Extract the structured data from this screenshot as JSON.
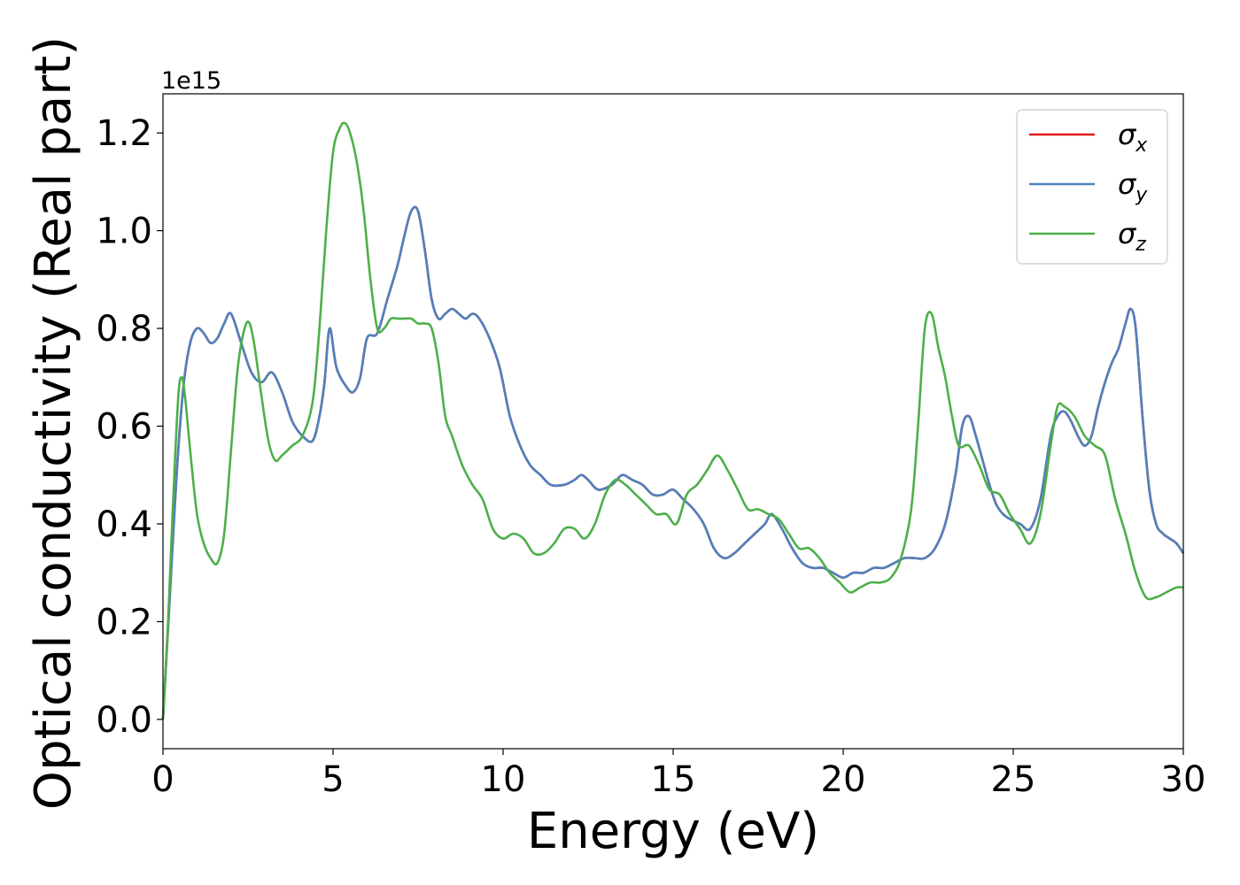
{
  "chart_data": {
    "type": "line",
    "xlabel": "Energy (eV)",
    "ylabel": "Optical conductivity (Real part)",
    "y_offset_label": "1e15",
    "xlim": [
      0,
      30
    ],
    "ylim": [
      -0.06,
      1.28
    ],
    "x_ticks": [
      0,
      5,
      10,
      15,
      20,
      25,
      30
    ],
    "y_ticks": [
      0.0,
      0.2,
      0.4,
      0.6,
      0.8,
      1.0,
      1.2
    ],
    "x_tick_labels": [
      "0",
      "5",
      "10",
      "15",
      "20",
      "25",
      "30"
    ],
    "y_tick_labels": [
      "0.0",
      "0.2",
      "0.4",
      "0.6",
      "0.8",
      "1.0",
      "1.2"
    ],
    "legend_position": "top-right",
    "grid": false,
    "series": [
      {
        "name": "σx",
        "symbol": "σ",
        "subscript": "x",
        "color": "#e41a1c",
        "x": [
          0,
          0.2,
          0.4,
          0.6,
          0.8,
          1.0,
          1.2,
          1.4,
          1.6,
          1.8,
          2.0,
          2.3,
          2.6,
          2.9,
          3.2,
          3.5,
          3.8,
          4.1,
          4.4,
          4.6,
          4.75,
          4.9,
          5.1,
          5.4,
          5.6,
          5.8,
          6.0,
          6.3,
          6.6,
          6.9,
          7.1,
          7.3,
          7.5,
          7.7,
          7.9,
          8.1,
          8.3,
          8.5,
          8.7,
          8.9,
          9.1,
          9.3,
          9.6,
          9.9,
          10.2,
          10.5,
          10.8,
          11.1,
          11.4,
          11.8,
          12.1,
          12.3,
          12.5,
          12.8,
          13.2,
          13.5,
          13.8,
          14.1,
          14.4,
          14.7,
          15.0,
          15.3,
          15.6,
          15.9,
          16.2,
          16.5,
          16.8,
          17.1,
          17.4,
          17.7,
          17.9,
          18.2,
          18.5,
          18.8,
          19.1,
          19.4,
          19.7,
          20.0,
          20.3,
          20.6,
          20.9,
          21.2,
          21.5,
          21.8,
          22.1,
          22.4,
          22.7,
          23.0,
          23.3,
          23.5,
          23.7,
          23.9,
          24.1,
          24.3,
          24.5,
          24.7,
          24.9,
          25.2,
          25.5,
          25.8,
          26.1,
          26.3,
          26.5,
          26.7,
          26.9,
          27.1,
          27.3,
          27.5,
          27.7,
          27.9,
          28.1,
          28.3,
          28.45,
          28.6,
          28.8,
          29.0,
          29.2,
          29.4,
          29.6,
          29.8,
          30.0
        ],
        "values": [
          0.0,
          0.25,
          0.5,
          0.68,
          0.77,
          0.8,
          0.79,
          0.77,
          0.78,
          0.81,
          0.83,
          0.77,
          0.71,
          0.69,
          0.71,
          0.67,
          0.61,
          0.58,
          0.57,
          0.62,
          0.69,
          0.8,
          0.72,
          0.68,
          0.67,
          0.7,
          0.78,
          0.79,
          0.86,
          0.93,
          0.99,
          1.04,
          1.04,
          0.96,
          0.86,
          0.82,
          0.83,
          0.84,
          0.83,
          0.82,
          0.83,
          0.82,
          0.78,
          0.72,
          0.62,
          0.56,
          0.52,
          0.5,
          0.48,
          0.48,
          0.49,
          0.5,
          0.49,
          0.47,
          0.48,
          0.5,
          0.49,
          0.48,
          0.46,
          0.46,
          0.47,
          0.45,
          0.43,
          0.4,
          0.35,
          0.33,
          0.34,
          0.36,
          0.38,
          0.4,
          0.42,
          0.39,
          0.35,
          0.32,
          0.31,
          0.31,
          0.3,
          0.29,
          0.3,
          0.3,
          0.31,
          0.31,
          0.32,
          0.33,
          0.33,
          0.33,
          0.35,
          0.4,
          0.5,
          0.6,
          0.62,
          0.58,
          0.53,
          0.48,
          0.44,
          0.42,
          0.41,
          0.4,
          0.39,
          0.45,
          0.58,
          0.62,
          0.63,
          0.61,
          0.58,
          0.56,
          0.58,
          0.64,
          0.69,
          0.73,
          0.76,
          0.81,
          0.84,
          0.8,
          0.62,
          0.47,
          0.4,
          0.38,
          0.37,
          0.36,
          0.34
        ]
      },
      {
        "name": "σy",
        "symbol": "σ",
        "subscript": "y",
        "color": "#4f81bd",
        "x": [
          0,
          0.2,
          0.4,
          0.6,
          0.8,
          1.0,
          1.2,
          1.4,
          1.6,
          1.8,
          2.0,
          2.3,
          2.6,
          2.9,
          3.2,
          3.5,
          3.8,
          4.1,
          4.4,
          4.6,
          4.75,
          4.9,
          5.1,
          5.4,
          5.6,
          5.8,
          6.0,
          6.3,
          6.6,
          6.9,
          7.1,
          7.3,
          7.5,
          7.7,
          7.9,
          8.1,
          8.3,
          8.5,
          8.7,
          8.9,
          9.1,
          9.3,
          9.6,
          9.9,
          10.2,
          10.5,
          10.8,
          11.1,
          11.4,
          11.8,
          12.1,
          12.3,
          12.5,
          12.8,
          13.2,
          13.5,
          13.8,
          14.1,
          14.4,
          14.7,
          15.0,
          15.3,
          15.6,
          15.9,
          16.2,
          16.5,
          16.8,
          17.1,
          17.4,
          17.7,
          17.9,
          18.2,
          18.5,
          18.8,
          19.1,
          19.4,
          19.7,
          20.0,
          20.3,
          20.6,
          20.9,
          21.2,
          21.5,
          21.8,
          22.1,
          22.4,
          22.7,
          23.0,
          23.3,
          23.5,
          23.7,
          23.9,
          24.1,
          24.3,
          24.5,
          24.7,
          24.9,
          25.2,
          25.5,
          25.8,
          26.1,
          26.3,
          26.5,
          26.7,
          26.9,
          27.1,
          27.3,
          27.5,
          27.7,
          27.9,
          28.1,
          28.3,
          28.45,
          28.6,
          28.8,
          29.0,
          29.2,
          29.4,
          29.6,
          29.8,
          30.0
        ],
        "values": [
          0.0,
          0.25,
          0.5,
          0.68,
          0.77,
          0.8,
          0.79,
          0.77,
          0.78,
          0.81,
          0.83,
          0.77,
          0.71,
          0.69,
          0.71,
          0.67,
          0.61,
          0.58,
          0.57,
          0.62,
          0.69,
          0.8,
          0.72,
          0.68,
          0.67,
          0.7,
          0.78,
          0.79,
          0.86,
          0.93,
          0.99,
          1.04,
          1.04,
          0.96,
          0.86,
          0.82,
          0.83,
          0.84,
          0.83,
          0.82,
          0.83,
          0.82,
          0.78,
          0.72,
          0.62,
          0.56,
          0.52,
          0.5,
          0.48,
          0.48,
          0.49,
          0.5,
          0.49,
          0.47,
          0.48,
          0.5,
          0.49,
          0.48,
          0.46,
          0.46,
          0.47,
          0.45,
          0.43,
          0.4,
          0.35,
          0.33,
          0.34,
          0.36,
          0.38,
          0.4,
          0.42,
          0.39,
          0.35,
          0.32,
          0.31,
          0.31,
          0.3,
          0.29,
          0.3,
          0.3,
          0.31,
          0.31,
          0.32,
          0.33,
          0.33,
          0.33,
          0.35,
          0.4,
          0.5,
          0.6,
          0.62,
          0.58,
          0.53,
          0.48,
          0.44,
          0.42,
          0.41,
          0.4,
          0.39,
          0.45,
          0.58,
          0.62,
          0.63,
          0.61,
          0.58,
          0.56,
          0.58,
          0.64,
          0.69,
          0.73,
          0.76,
          0.81,
          0.84,
          0.8,
          0.62,
          0.47,
          0.4,
          0.38,
          0.37,
          0.36,
          0.34
        ]
      },
      {
        "name": "σz",
        "symbol": "σ",
        "subscript": "z",
        "color": "#4daf4a",
        "x": [
          0,
          0.15,
          0.3,
          0.45,
          0.55,
          0.65,
          0.8,
          1.0,
          1.2,
          1.4,
          1.6,
          1.8,
          2.0,
          2.2,
          2.4,
          2.55,
          2.7,
          2.9,
          3.1,
          3.3,
          3.5,
          3.8,
          4.1,
          4.4,
          4.6,
          4.8,
          5.0,
          5.2,
          5.35,
          5.5,
          5.7,
          5.9,
          6.1,
          6.3,
          6.5,
          6.7,
          6.9,
          7.1,
          7.3,
          7.5,
          7.7,
          7.9,
          8.1,
          8.3,
          8.5,
          8.8,
          9.1,
          9.4,
          9.7,
          10.0,
          10.3,
          10.6,
          10.9,
          11.2,
          11.5,
          11.8,
          12.1,
          12.4,
          12.7,
          13.0,
          13.3,
          13.6,
          13.9,
          14.2,
          14.5,
          14.8,
          15.1,
          15.4,
          15.7,
          16.0,
          16.3,
          16.6,
          16.9,
          17.2,
          17.5,
          17.8,
          18.1,
          18.4,
          18.7,
          19.0,
          19.3,
          19.6,
          19.9,
          20.2,
          20.5,
          20.8,
          21.1,
          21.4,
          21.7,
          22.0,
          22.2,
          22.4,
          22.6,
          22.8,
          23.0,
          23.2,
          23.4,
          23.7,
          24.0,
          24.3,
          24.6,
          24.9,
          25.2,
          25.5,
          25.8,
          26.1,
          26.3,
          26.5,
          26.8,
          27.1,
          27.4,
          27.7,
          28.0,
          28.3,
          28.6,
          28.9,
          29.2,
          29.5,
          29.8,
          30.0
        ],
        "values": [
          0.0,
          0.2,
          0.45,
          0.66,
          0.7,
          0.66,
          0.55,
          0.42,
          0.36,
          0.33,
          0.32,
          0.38,
          0.55,
          0.72,
          0.8,
          0.81,
          0.76,
          0.66,
          0.57,
          0.53,
          0.54,
          0.56,
          0.58,
          0.65,
          0.8,
          1.0,
          1.16,
          1.21,
          1.22,
          1.2,
          1.14,
          1.04,
          0.9,
          0.8,
          0.8,
          0.82,
          0.82,
          0.82,
          0.82,
          0.81,
          0.81,
          0.8,
          0.73,
          0.62,
          0.58,
          0.52,
          0.48,
          0.45,
          0.39,
          0.37,
          0.38,
          0.37,
          0.34,
          0.34,
          0.36,
          0.39,
          0.39,
          0.37,
          0.4,
          0.46,
          0.49,
          0.48,
          0.46,
          0.44,
          0.42,
          0.42,
          0.4,
          0.46,
          0.48,
          0.51,
          0.54,
          0.51,
          0.47,
          0.43,
          0.43,
          0.42,
          0.41,
          0.38,
          0.35,
          0.35,
          0.33,
          0.3,
          0.28,
          0.26,
          0.27,
          0.28,
          0.28,
          0.29,
          0.33,
          0.43,
          0.6,
          0.8,
          0.83,
          0.76,
          0.7,
          0.62,
          0.56,
          0.56,
          0.52,
          0.47,
          0.46,
          0.42,
          0.39,
          0.36,
          0.42,
          0.56,
          0.64,
          0.64,
          0.62,
          0.58,
          0.56,
          0.54,
          0.45,
          0.38,
          0.3,
          0.25,
          0.25,
          0.26,
          0.27,
          0.27
        ]
      }
    ]
  }
}
